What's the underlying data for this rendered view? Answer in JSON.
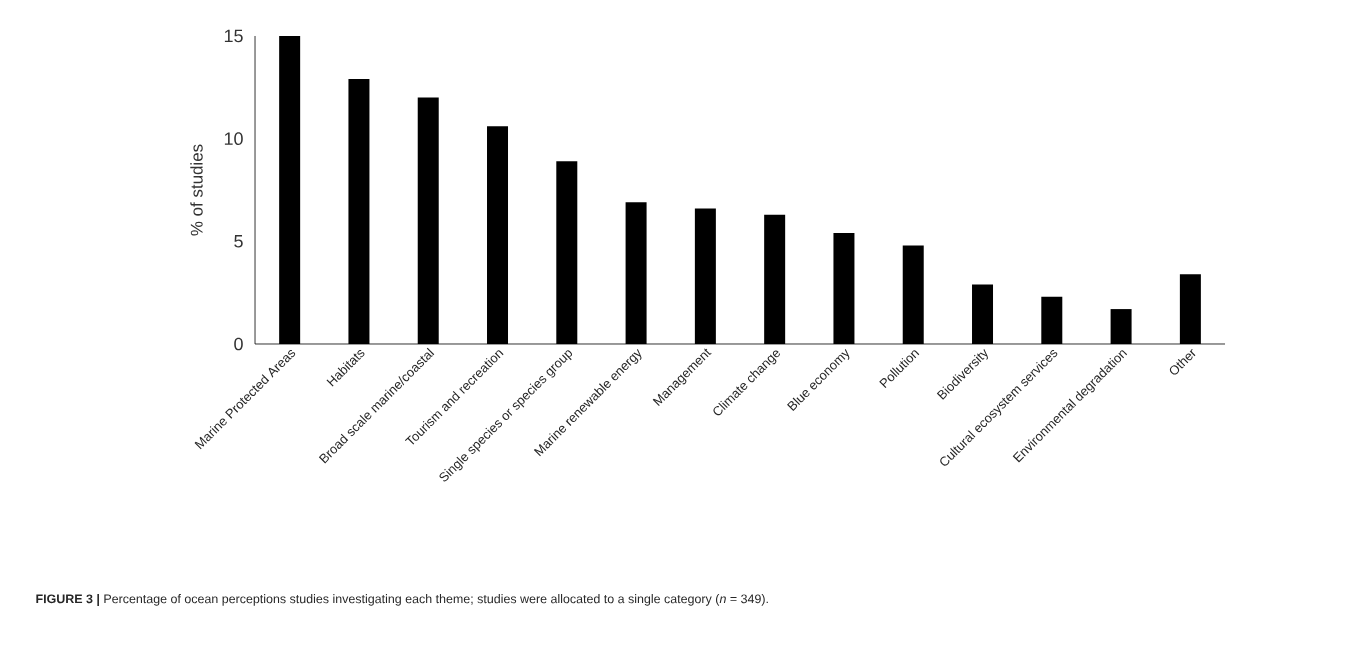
{
  "chart_data": {
    "type": "bar",
    "ylabel": "% of studies",
    "categories": [
      "Marine Protected Areas",
      "Habitats",
      "Broad scale marine/coastal",
      "Tourism and recreation",
      "Single species or species group",
      "Marine renewable energy",
      "Management",
      "Climate change",
      "Blue economy",
      "Pollution",
      "Biodiversity",
      "Cultural ecosystem services",
      "Environmental degradation",
      "Other"
    ],
    "values": [
      15.0,
      12.9,
      12.0,
      10.6,
      8.9,
      6.9,
      6.6,
      6.3,
      5.4,
      4.8,
      2.9,
      2.3,
      1.7,
      3.4
    ],
    "color": "#000000",
    "ylim": [
      0,
      15
    ],
    "yticks": [
      0,
      5,
      10,
      15
    ],
    "grid": false,
    "annotations": [
      "**FIGURE 3 |** Percentage of ocean perceptions studies investigating each theme; studies were allocated to a single category (*n* = 349)."
    ]
  }
}
